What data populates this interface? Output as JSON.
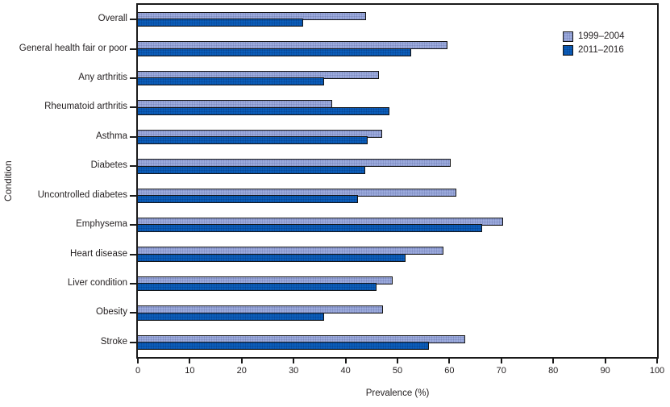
{
  "chart_data": {
    "type": "bar",
    "orientation": "horizontal",
    "title": "",
    "xlabel": "Prevalence (%)",
    "ylabel": "Condition",
    "xlim": [
      0,
      100
    ],
    "xticks": [
      0,
      10,
      20,
      30,
      40,
      50,
      60,
      70,
      80,
      90,
      100
    ],
    "grid": false,
    "legend_position": "top-right",
    "categories": [
      "Overall",
      "General health fair or poor",
      "Any arthritis",
      "Rheumatoid arthritis",
      "Asthma",
      "Diabetes",
      "Uncontrolled diabetes",
      "Emphysema",
      "Heart disease",
      "Liver condition",
      "Obesity",
      "Stroke"
    ],
    "series": [
      {
        "name": "1999–2004",
        "color": "#9DACDE",
        "values": [
          43.9,
          59.7,
          46.5,
          37.4,
          47.0,
          60.2,
          61.4,
          70.4,
          58.8,
          49.1,
          47.2,
          63.0
        ]
      },
      {
        "name": "2011–2016",
        "color": "#0B5EBB",
        "values": [
          31.9,
          52.7,
          35.9,
          48.5,
          44.2,
          43.8,
          42.4,
          66.3,
          51.5,
          46.0,
          35.8,
          56.0
        ]
      }
    ]
  },
  "colors": {
    "axis": "#1a1a1a",
    "text": "#231f20",
    "background": "#ffffff"
  }
}
